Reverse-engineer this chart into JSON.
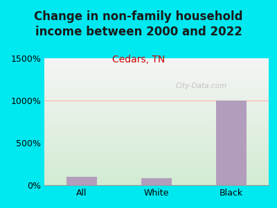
{
  "title": "Change in non-family household\nincome between 2000 and 2022",
  "subtitle": "Cedars, TN",
  "categories": [
    "All",
    "White",
    "Black"
  ],
  "values": [
    100,
    80,
    1000
  ],
  "bar_color": "#b39dbd",
  "title_fontsize": 12,
  "subtitle_fontsize": 10,
  "subtitle_color": "#cc0000",
  "tick_label_fontsize": 9,
  "background_outer": "#00e8f0",
  "background_plot_top": "#f5f5f5",
  "background_plot_bottom": "#d4edda",
  "ylim": [
    0,
    1500
  ],
  "yticks": [
    0,
    500,
    1000,
    1500
  ],
  "ytick_labels": [
    "0%",
    "500%",
    "1000%",
    "1500%"
  ],
  "watermark": "City-Data.com",
  "grid_color": "#ffb0b0",
  "grid_linewidth": 0.8,
  "bar_width": 0.4
}
